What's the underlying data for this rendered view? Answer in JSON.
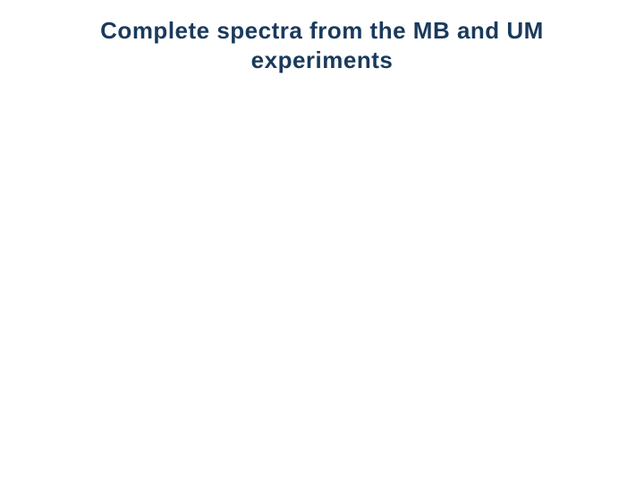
{
  "slide": {
    "title": "Complete spectra from the MB and UM experiments",
    "title_color": "#1a3a5c",
    "title_fontsize": 26,
    "title_fontweight": "bold",
    "background_color": "#ffffff"
  }
}
